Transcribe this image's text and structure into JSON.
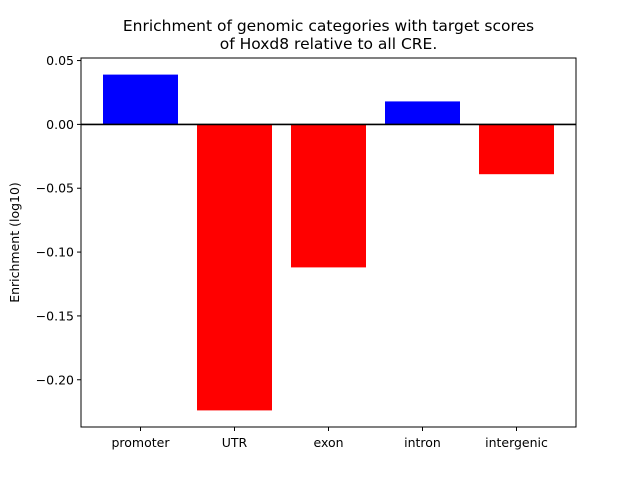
{
  "chart_data": {
    "type": "bar",
    "title": [
      "Enrichment of genomic categories with target scores",
      "of Hoxd8 relative to all CRE."
    ],
    "xlabel": "",
    "ylabel": "Enrichment (log10)",
    "categories": [
      "promoter",
      "UTR",
      "exon",
      "intron",
      "intergenic"
    ],
    "values": [
      0.039,
      -0.224,
      -0.112,
      0.018,
      -0.039
    ],
    "ylim": [
      -0.237,
      0.052
    ],
    "yticks": [
      0.05,
      0.0,
      -0.05,
      -0.1,
      -0.15,
      -0.2
    ],
    "ytick_labels": [
      "0.05",
      "0.00",
      "−0.05",
      "−0.10",
      "−0.15",
      "−0.20"
    ],
    "colors": {
      "positive": "#0000ff",
      "negative": "#ff0000",
      "zero_line": "#000000"
    },
    "zero_line": true,
    "grid": false,
    "legend": "none"
  }
}
